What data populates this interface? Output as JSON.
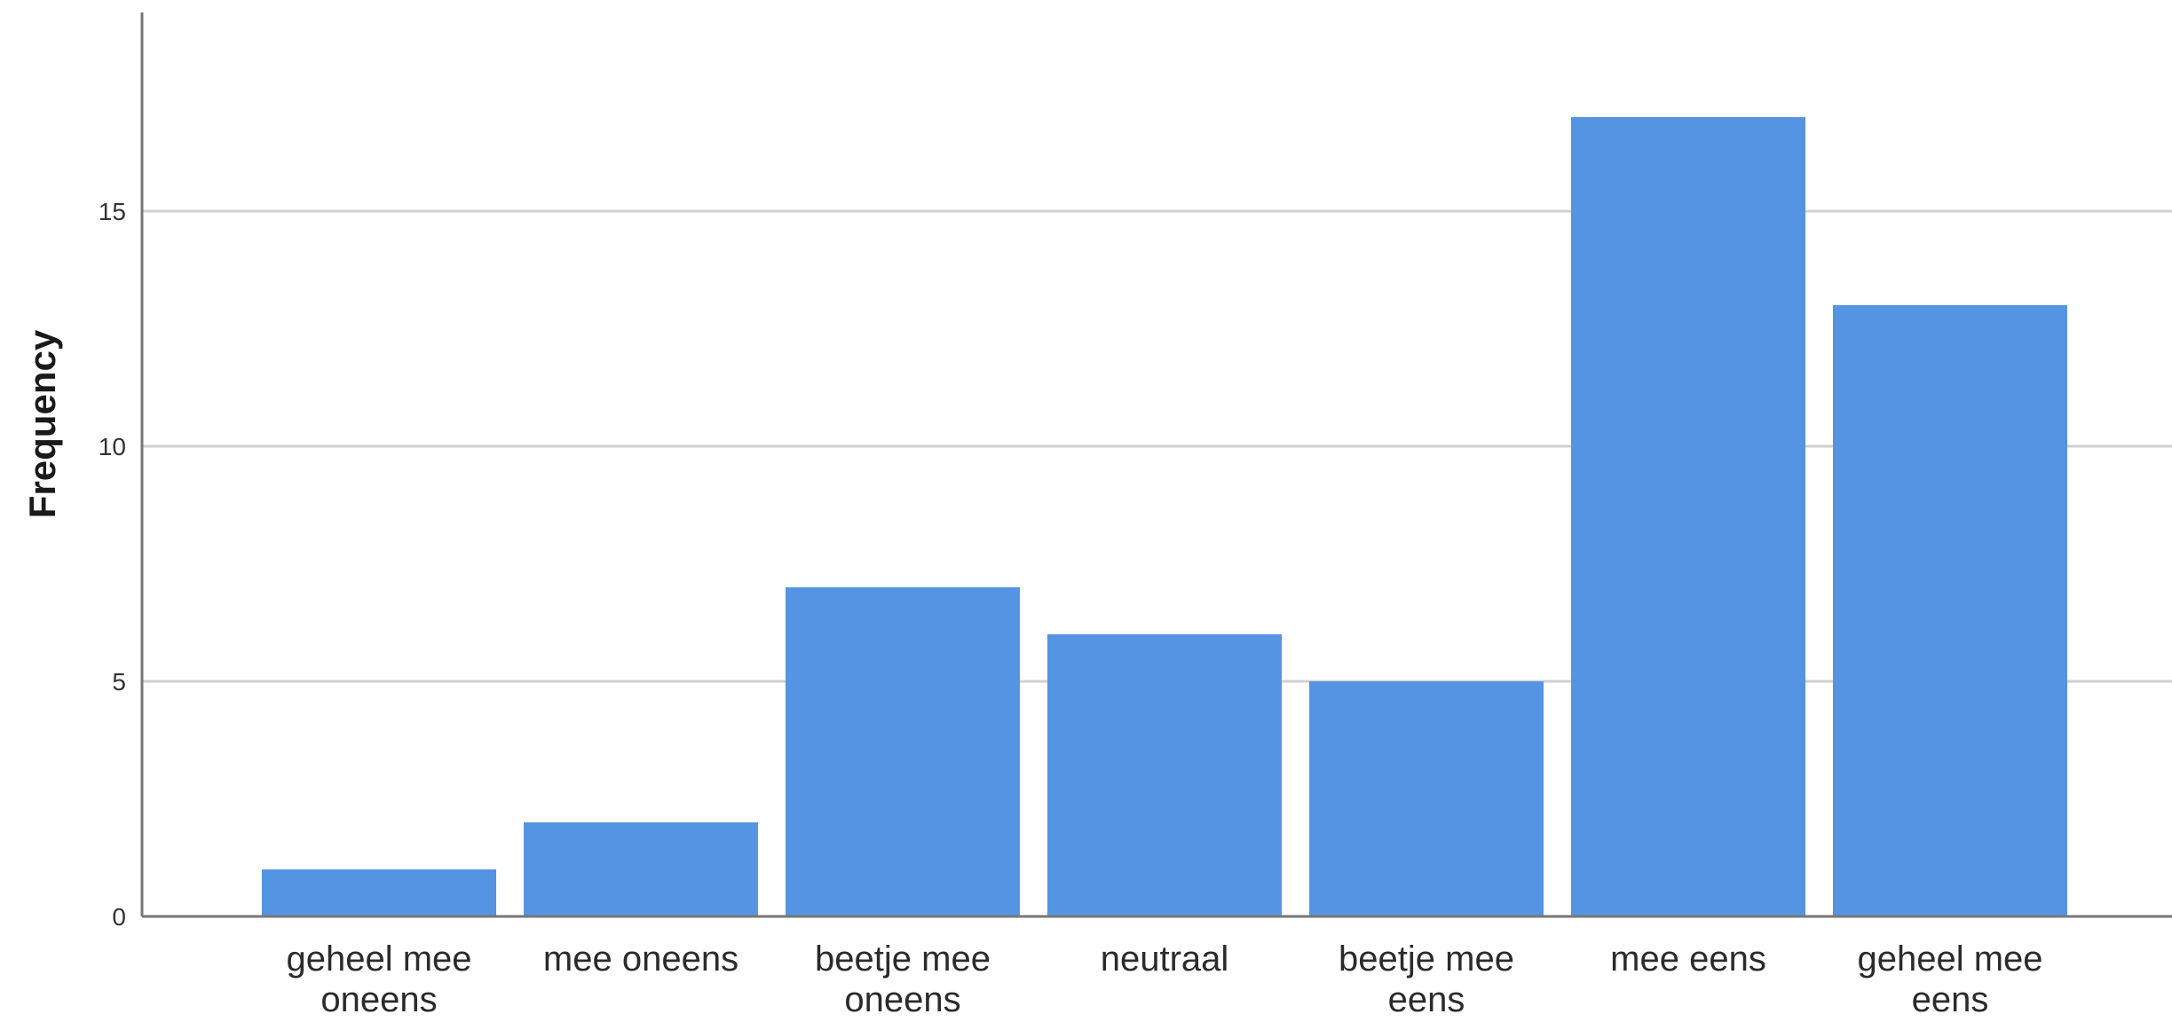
{
  "chart_data": {
    "type": "bar",
    "categories": [
      [
        "geheel mee",
        "oneens"
      ],
      [
        "mee oneens"
      ],
      [
        "beetje mee",
        "oneens"
      ],
      [
        "neutraal"
      ],
      [
        "beetje mee",
        "eens"
      ],
      [
        "mee eens"
      ],
      [
        "geheel mee",
        "eens"
      ]
    ],
    "values": [
      1,
      2,
      7,
      6,
      5,
      17,
      13
    ],
    "title": "",
    "xlabel": "",
    "ylabel": "Frequency",
    "ylim": [
      0,
      19
    ],
    "yticks": [
      0,
      5,
      10,
      15
    ],
    "grid": true,
    "bar_color": "#5594E2",
    "grid_color": "#d0d0d0",
    "axis_color": "#777777"
  }
}
